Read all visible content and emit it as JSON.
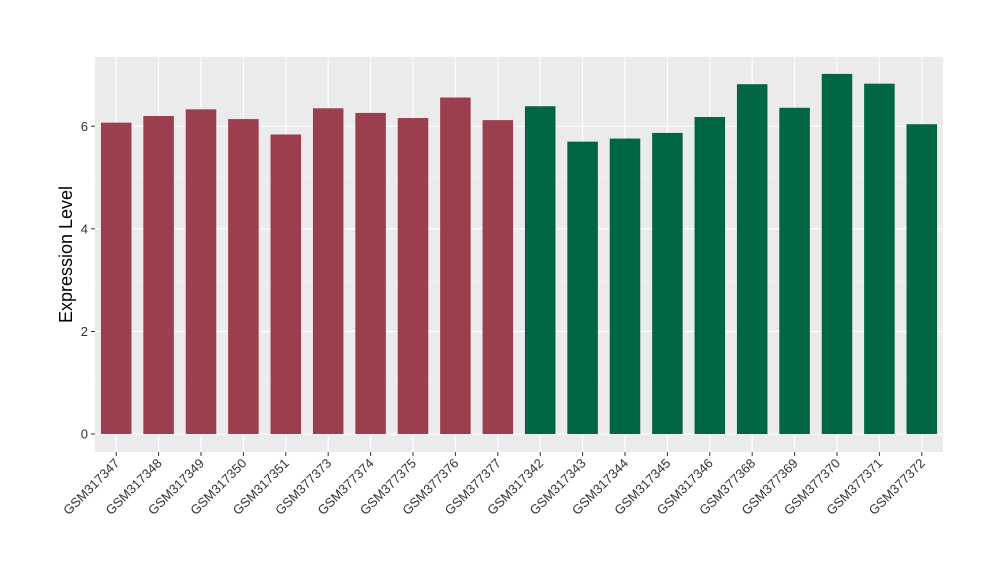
{
  "chart_data": {
    "type": "bar",
    "ylabel": "Expression Level",
    "xlabel": "",
    "ylim": [
      -0.35,
      7.35
    ],
    "yticks": [
      0,
      2,
      4,
      6
    ],
    "grid": true,
    "panel_background": "#ebebeb",
    "series_colors": {
      "group1": "#9b3f4f",
      "group2": "#006644"
    },
    "categories": [
      "GSM317347",
      "GSM317348",
      "GSM317349",
      "GSM317350",
      "GSM317351",
      "GSM377373",
      "GSM377374",
      "GSM377375",
      "GSM377376",
      "GSM377377",
      "GSM317342",
      "GSM317343",
      "GSM317344",
      "GSM317345",
      "GSM317346",
      "GSM377368",
      "GSM377369",
      "GSM377370",
      "GSM377371",
      "GSM377372"
    ],
    "values": [
      6.07,
      6.2,
      6.33,
      6.14,
      5.84,
      6.35,
      6.26,
      6.16,
      6.56,
      6.12,
      6.39,
      5.7,
      5.76,
      5.87,
      6.18,
      6.82,
      6.36,
      7.02,
      6.83,
      6.04
    ],
    "groups": [
      "group1",
      "group1",
      "group1",
      "group1",
      "group1",
      "group1",
      "group1",
      "group1",
      "group1",
      "group1",
      "group2",
      "group2",
      "group2",
      "group2",
      "group2",
      "group2",
      "group2",
      "group2",
      "group2",
      "group2"
    ]
  }
}
